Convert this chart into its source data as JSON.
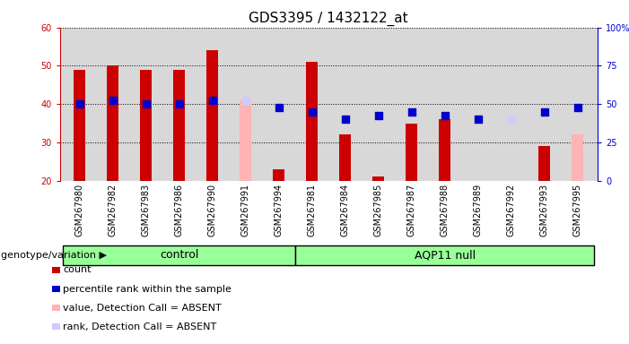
{
  "title": "GDS3395 / 1432122_at",
  "samples": [
    "GSM267980",
    "GSM267982",
    "GSM267983",
    "GSM267986",
    "GSM267990",
    "GSM267991",
    "GSM267994",
    "GSM267981",
    "GSM267984",
    "GSM267985",
    "GSM267987",
    "GSM267988",
    "GSM267989",
    "GSM267992",
    "GSM267993",
    "GSM267995"
  ],
  "control_count": 7,
  "aqp11_count": 9,
  "bar_values": [
    49,
    50,
    49,
    49,
    54,
    null,
    23,
    51,
    32,
    21,
    35,
    36,
    null,
    null,
    29,
    null
  ],
  "absent_bar_values": [
    null,
    null,
    null,
    null,
    null,
    41,
    null,
    null,
    null,
    null,
    null,
    null,
    null,
    null,
    null,
    32
  ],
  "absent_bar_color": "#ffb3b3",
  "bar_color": "#cc0000",
  "dot_values": [
    40,
    41,
    40,
    40,
    41,
    null,
    39,
    38,
    36,
    37,
    38,
    37,
    36,
    null,
    38,
    39
  ],
  "dot_color": "#0000cc",
  "absent_dot_values": [
    null,
    null,
    null,
    null,
    null,
    41,
    null,
    null,
    null,
    null,
    null,
    null,
    null,
    36,
    null,
    null
  ],
  "absent_dot_color": "#ccccff",
  "ylim": [
    20,
    60
  ],
  "yticks": [
    20,
    30,
    40,
    50,
    60
  ],
  "right_ylim": [
    0,
    100
  ],
  "right_yticks": [
    0,
    25,
    50,
    75,
    100
  ],
  "right_yticklabels": [
    "0",
    "25",
    "50",
    "75",
    "100%"
  ],
  "control_label": "control",
  "aqp11_label": "AQP11 null",
  "genotype_label": "genotype/variation",
  "legend_items": [
    {
      "color": "#cc0000",
      "label": "count"
    },
    {
      "color": "#0000cc",
      "label": "percentile rank within the sample"
    },
    {
      "color": "#ffb3b3",
      "label": "value, Detection Call = ABSENT"
    },
    {
      "color": "#ccccff",
      "label": "rank, Detection Call = ABSENT"
    }
  ],
  "bg_color": "#d8d8d8",
  "group_bg_color": "#99ff99",
  "bar_width": 0.35,
  "dot_size": 30,
  "title_fontsize": 11,
  "tick_fontsize": 7,
  "label_fontsize": 8
}
